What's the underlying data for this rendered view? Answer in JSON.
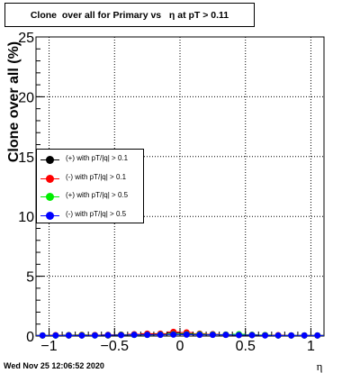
{
  "chart_data": {
    "type": "scatter",
    "title": "Clone  over all for Primary vs   η at pT > 0.11",
    "xlabel": "η",
    "ylabel": "Clone  over all (%)",
    "xlim": [
      -1.1,
      1.1
    ],
    "ylim": [
      0,
      25
    ],
    "xticks": [
      -1,
      -0.5,
      0,
      0.5,
      1
    ],
    "xtick_labels": [
      "−1",
      "−0.5",
      "0",
      "0.5",
      "1"
    ],
    "yticks": [
      0,
      5,
      10,
      15,
      20,
      25
    ],
    "ytick_labels": [
      "0",
      "5",
      "10",
      "15",
      "20",
      "25"
    ],
    "grid": true,
    "legend_position": "middle-left",
    "series": [
      {
        "name": "(+) with pT/|q| > 0.1",
        "color": "#000000",
        "x": [
          -1.05,
          -0.95,
          -0.85,
          -0.75,
          -0.65,
          -0.55,
          -0.45,
          -0.35,
          -0.25,
          -0.15,
          -0.05,
          0.05,
          0.15,
          0.25,
          0.35,
          0.45,
          0.55,
          0.65,
          0.75,
          0.85,
          0.95,
          1.05
        ],
        "y": [
          0.05,
          0.05,
          0.08,
          0.05,
          0.08,
          0.05,
          0.1,
          0.1,
          0.15,
          0.15,
          0.25,
          0.2,
          0.15,
          0.15,
          0.1,
          0.1,
          0.08,
          0.08,
          0.05,
          0.05,
          0.05,
          0.05
        ]
      },
      {
        "name": "(-) with pT/|q| > 0.1",
        "color": "#ff0000",
        "x": [
          -1.05,
          -0.95,
          -0.85,
          -0.75,
          -0.65,
          -0.55,
          -0.45,
          -0.35,
          -0.25,
          -0.15,
          -0.05,
          0.05,
          0.15,
          0.25,
          0.35,
          0.45,
          0.55,
          0.65,
          0.75,
          0.85,
          0.95,
          1.05
        ],
        "y": [
          0.05,
          0.08,
          0.05,
          0.1,
          0.08,
          0.1,
          0.12,
          0.15,
          0.2,
          0.2,
          0.35,
          0.3,
          0.2,
          0.15,
          0.12,
          0.1,
          0.1,
          0.08,
          0.08,
          0.05,
          0.05,
          0.05
        ]
      },
      {
        "name": "(+) with pT/|q| > 0.5",
        "color": "#00ee00",
        "x": [
          -1.05,
          -0.95,
          -0.85,
          -0.75,
          -0.65,
          -0.55,
          -0.45,
          -0.35,
          -0.25,
          -0.15,
          -0.05,
          0.05,
          0.15,
          0.25,
          0.35,
          0.45,
          0.55,
          0.65,
          0.75,
          0.85,
          0.95,
          1.05
        ],
        "y": [
          0.05,
          0.05,
          0.05,
          0.08,
          0.05,
          0.08,
          0.1,
          0.1,
          0.1,
          0.12,
          0.15,
          0.15,
          0.15,
          0.12,
          0.12,
          0.15,
          0.1,
          0.08,
          0.05,
          0.05,
          0.05,
          0.05
        ]
      },
      {
        "name": "(-) with pT/|q| > 0.5",
        "color": "#0000ff",
        "x": [
          -1.05,
          -0.95,
          -0.85,
          -0.75,
          -0.65,
          -0.55,
          -0.45,
          -0.35,
          -0.25,
          -0.15,
          -0.05,
          0.05,
          0.15,
          0.25,
          0.35,
          0.45,
          0.55,
          0.65,
          0.75,
          0.85,
          0.95,
          1.05
        ],
        "y": [
          0.05,
          0.05,
          0.05,
          0.05,
          0.05,
          0.08,
          0.08,
          0.1,
          0.1,
          0.1,
          0.12,
          0.12,
          0.1,
          0.1,
          0.1,
          0.08,
          0.08,
          0.05,
          0.05,
          0.05,
          0.05,
          0.05
        ]
      }
    ]
  },
  "footer": {
    "timestamp": "Wed Nov 25 12:06:52 2020"
  }
}
